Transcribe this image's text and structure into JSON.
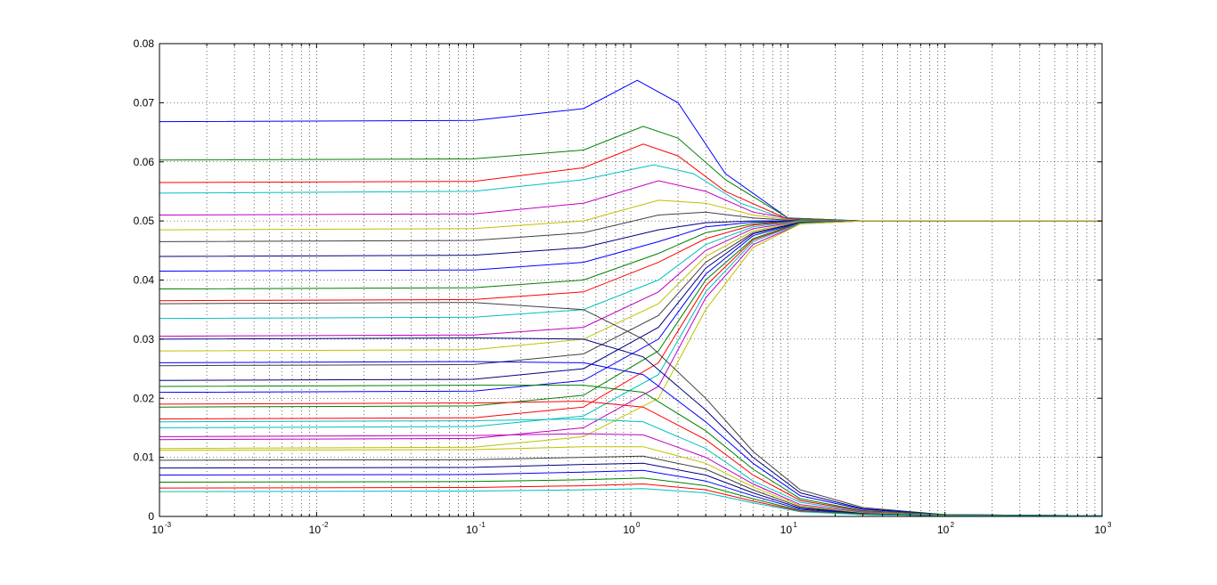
{
  "chart_data": {
    "type": "line",
    "xscale": "log",
    "xlim": [
      0.001,
      1000
    ],
    "ylim": [
      0,
      0.08
    ],
    "grid": true,
    "grid_style": "dotted",
    "title": "",
    "xlabel": "",
    "ylabel": "",
    "x_tick_labels": [
      {
        "value": 0.001,
        "base": "10",
        "exp": "-3"
      },
      {
        "value": 0.01,
        "base": "10",
        "exp": "-2"
      },
      {
        "value": 0.1,
        "base": "10",
        "exp": "-1"
      },
      {
        "value": 1,
        "base": "10",
        "exp": "0"
      },
      {
        "value": 10,
        "base": "10",
        "exp": "1"
      },
      {
        "value": 100,
        "base": "10",
        "exp": "2"
      },
      {
        "value": 1000,
        "base": "10",
        "exp": "3"
      }
    ],
    "y_tick_labels": [
      {
        "value": 0,
        "label": "0"
      },
      {
        "value": 0.01,
        "label": "0.01"
      },
      {
        "value": 0.02,
        "label": "0.02"
      },
      {
        "value": 0.03,
        "label": "0.03"
      },
      {
        "value": 0.04,
        "label": "0.04"
      },
      {
        "value": 0.05,
        "label": "0.05"
      },
      {
        "value": 0.06,
        "label": "0.06"
      },
      {
        "value": 0.07,
        "label": "0.07"
      },
      {
        "value": 0.08,
        "label": "0.08"
      }
    ],
    "series_colors": [
      "#0000ff",
      "#008000",
      "#ff0000",
      "#00bfbf",
      "#bf00bf",
      "#bfbf00",
      "#404040",
      "#000080"
    ],
    "series": [
      {
        "x": [
          0.001,
          0.1,
          0.5,
          1.1,
          2,
          4,
          10,
          30,
          1000
        ],
        "y": [
          0.0668,
          0.067,
          0.069,
          0.0738,
          0.07,
          0.058,
          0.0505,
          0.05,
          0.05
        ]
      },
      {
        "x": [
          0.001,
          0.1,
          0.5,
          1.2,
          2,
          4,
          10,
          30,
          1000
        ],
        "y": [
          0.0603,
          0.0605,
          0.062,
          0.066,
          0.064,
          0.057,
          0.0505,
          0.05,
          0.05
        ]
      },
      {
        "x": [
          0.001,
          0.1,
          0.5,
          1.2,
          2,
          4,
          10,
          30,
          1000
        ],
        "y": [
          0.0565,
          0.0567,
          0.059,
          0.063,
          0.061,
          0.055,
          0.0503,
          0.05,
          0.05
        ]
      },
      {
        "x": [
          0.001,
          0.1,
          0.5,
          1.4,
          2.5,
          5,
          10,
          30,
          1000
        ],
        "y": [
          0.0547,
          0.055,
          0.057,
          0.0595,
          0.058,
          0.053,
          0.0502,
          0.05,
          0.05
        ]
      },
      {
        "x": [
          0.001,
          0.1,
          0.5,
          1.5,
          3,
          6,
          12,
          30,
          1000
        ],
        "y": [
          0.051,
          0.0512,
          0.053,
          0.0568,
          0.055,
          0.0515,
          0.0501,
          0.05,
          0.05
        ]
      },
      {
        "x": [
          0.001,
          0.1,
          0.5,
          1.5,
          3,
          6,
          12,
          30,
          1000
        ],
        "y": [
          0.0485,
          0.0487,
          0.05,
          0.0535,
          0.053,
          0.051,
          0.05,
          0.05,
          0.05
        ]
      },
      {
        "x": [
          0.001,
          0.1,
          0.5,
          1.5,
          3,
          6,
          12,
          30,
          1000
        ],
        "y": [
          0.0465,
          0.0467,
          0.048,
          0.051,
          0.0515,
          0.0505,
          0.05,
          0.05,
          0.05
        ]
      },
      {
        "x": [
          0.001,
          0.1,
          0.5,
          1.5,
          3,
          6,
          12,
          30,
          1000
        ],
        "y": [
          0.044,
          0.0442,
          0.0455,
          0.0485,
          0.0497,
          0.05,
          0.05,
          0.05,
          0.05
        ]
      },
      {
        "x": [
          0.001,
          0.1,
          0.5,
          1.5,
          3,
          6,
          12,
          30,
          1000
        ],
        "y": [
          0.0415,
          0.0417,
          0.043,
          0.0465,
          0.049,
          0.0498,
          0.05,
          0.05,
          0.05
        ]
      },
      {
        "x": [
          0.001,
          0.1,
          0.5,
          1.5,
          3,
          6,
          12,
          30,
          1000
        ],
        "y": [
          0.0385,
          0.0387,
          0.04,
          0.0445,
          0.048,
          0.0495,
          0.05,
          0.05,
          0.05
        ]
      },
      {
        "x": [
          0.001,
          0.1,
          0.5,
          1.5,
          3,
          6,
          12,
          30,
          1000
        ],
        "y": [
          0.0365,
          0.0367,
          0.038,
          0.043,
          0.047,
          0.0493,
          0.05,
          0.05,
          0.05
        ]
      },
      {
        "x": [
          0.001,
          0.1,
          0.5,
          1.5,
          3,
          6,
          12,
          30,
          1000
        ],
        "y": [
          0.0335,
          0.0337,
          0.035,
          0.04,
          0.046,
          0.049,
          0.05,
          0.05,
          0.05
        ]
      },
      {
        "x": [
          0.001,
          0.1,
          0.5,
          1.5,
          3,
          6,
          12,
          30,
          1000
        ],
        "y": [
          0.0305,
          0.0307,
          0.032,
          0.038,
          0.045,
          0.0487,
          0.0499,
          0.05,
          0.05
        ]
      },
      {
        "x": [
          0.001,
          0.1,
          0.5,
          1.5,
          3,
          6,
          12,
          30,
          1000
        ],
        "y": [
          0.028,
          0.0282,
          0.03,
          0.036,
          0.044,
          0.0483,
          0.0499,
          0.05,
          0.05
        ]
      },
      {
        "x": [
          0.001,
          0.1,
          0.5,
          1.5,
          3,
          6,
          12,
          30,
          1000
        ],
        "y": [
          0.0255,
          0.0257,
          0.0275,
          0.034,
          0.043,
          0.048,
          0.0498,
          0.05,
          0.05
        ]
      },
      {
        "x": [
          0.001,
          0.1,
          0.5,
          1.5,
          3,
          6,
          12,
          30,
          1000
        ],
        "y": [
          0.023,
          0.0232,
          0.025,
          0.032,
          0.042,
          0.0478,
          0.0498,
          0.05,
          0.05
        ]
      },
      {
        "x": [
          0.001,
          0.1,
          0.5,
          1.5,
          3,
          6,
          12,
          30,
          1000
        ],
        "y": [
          0.021,
          0.0212,
          0.023,
          0.03,
          0.041,
          0.0475,
          0.0497,
          0.05,
          0.05
        ]
      },
      {
        "x": [
          0.001,
          0.1,
          0.5,
          1.5,
          3,
          6,
          12,
          30,
          1000
        ],
        "y": [
          0.0185,
          0.0187,
          0.0205,
          0.028,
          0.04,
          0.047,
          0.0497,
          0.05,
          0.05
        ]
      },
      {
        "x": [
          0.001,
          0.1,
          0.5,
          1.5,
          3,
          6,
          12,
          30,
          1000
        ],
        "y": [
          0.0165,
          0.0167,
          0.0185,
          0.026,
          0.039,
          0.0468,
          0.0496,
          0.05,
          0.05
        ]
      },
      {
        "x": [
          0.001,
          0.1,
          0.5,
          1.5,
          3,
          6,
          12,
          30,
          1000
        ],
        "y": [
          0.015,
          0.0152,
          0.017,
          0.024,
          0.038,
          0.0465,
          0.0496,
          0.05,
          0.05
        ]
      },
      {
        "x": [
          0.001,
          0.1,
          0.5,
          1.5,
          3,
          6,
          12,
          30,
          1000
        ],
        "y": [
          0.013,
          0.0132,
          0.015,
          0.022,
          0.037,
          0.046,
          0.0495,
          0.05,
          0.05
        ]
      },
      {
        "x": [
          0.001,
          0.1,
          0.5,
          1.5,
          3,
          6,
          12,
          30,
          1000
        ],
        "y": [
          0.0115,
          0.0117,
          0.0135,
          0.02,
          0.035,
          0.0455,
          0.0495,
          0.05,
          0.05
        ]
      },
      {
        "x": [
          0.001,
          0.1,
          0.5,
          1.2,
          3,
          6,
          12,
          30,
          100,
          1000
        ],
        "y": [
          0.036,
          0.0362,
          0.035,
          0.03,
          0.02,
          0.011,
          0.0045,
          0.0015,
          0.0003,
          0.0001
        ]
      },
      {
        "x": [
          0.001,
          0.1,
          0.5,
          1.2,
          3,
          6,
          12,
          30,
          100,
          1000
        ],
        "y": [
          0.03,
          0.0302,
          0.03,
          0.027,
          0.018,
          0.01,
          0.004,
          0.0013,
          0.0003,
          0.0001
        ]
      },
      {
        "x": [
          0.001,
          0.1,
          0.5,
          1.2,
          3,
          6,
          12,
          30,
          100,
          1000
        ],
        "y": [
          0.026,
          0.0262,
          0.026,
          0.024,
          0.016,
          0.009,
          0.0035,
          0.0012,
          0.0003,
          0.0001
        ]
      },
      {
        "x": [
          0.001,
          0.1,
          0.5,
          1.2,
          3,
          6,
          12,
          30,
          100,
          1000
        ],
        "y": [
          0.022,
          0.0222,
          0.0222,
          0.021,
          0.0145,
          0.008,
          0.003,
          0.001,
          0.0003,
          0.0001
        ]
      },
      {
        "x": [
          0.001,
          0.1,
          0.5,
          1.2,
          3,
          6,
          12,
          30,
          100,
          1000
        ],
        "y": [
          0.019,
          0.0192,
          0.0195,
          0.0185,
          0.013,
          0.007,
          0.0027,
          0.0009,
          0.0002,
          0.0001
        ]
      },
      {
        "x": [
          0.001,
          0.1,
          0.5,
          1.2,
          3,
          6,
          12,
          30,
          100,
          1000
        ],
        "y": [
          0.016,
          0.0162,
          0.0165,
          0.016,
          0.0115,
          0.006,
          0.0024,
          0.0008,
          0.0002,
          0.0001
        ]
      },
      {
        "x": [
          0.001,
          0.1,
          0.5,
          1.2,
          3,
          6,
          12,
          30,
          100,
          1000
        ],
        "y": [
          0.0135,
          0.0137,
          0.014,
          0.0138,
          0.01,
          0.0055,
          0.002,
          0.0007,
          0.0002,
          0.0001
        ]
      },
      {
        "x": [
          0.001,
          0.1,
          0.5,
          1.2,
          3,
          6,
          12,
          30,
          100,
          1000
        ],
        "y": [
          0.0112,
          0.0113,
          0.0118,
          0.0118,
          0.009,
          0.005,
          0.0018,
          0.0006,
          0.0002,
          0.0001
        ]
      },
      {
        "x": [
          0.001,
          0.1,
          0.5,
          1.2,
          3,
          6,
          12,
          30,
          100,
          1000
        ],
        "y": [
          0.0095,
          0.0096,
          0.01,
          0.0102,
          0.008,
          0.0045,
          0.0016,
          0.0005,
          0.0001,
          0.0001
        ]
      },
      {
        "x": [
          0.001,
          0.1,
          0.5,
          1.2,
          3,
          6,
          12,
          30,
          100,
          1000
        ],
        "y": [
          0.0082,
          0.0083,
          0.0088,
          0.009,
          0.007,
          0.004,
          0.0014,
          0.0005,
          0.0001,
          0.0001
        ]
      },
      {
        "x": [
          0.001,
          0.1,
          0.5,
          1.2,
          3,
          6,
          12,
          30,
          100,
          1000
        ],
        "y": [
          0.007,
          0.0071,
          0.0075,
          0.0078,
          0.006,
          0.0035,
          0.0012,
          0.0004,
          0.0001,
          0.0001
        ]
      },
      {
        "x": [
          0.001,
          0.1,
          0.5,
          1.2,
          3,
          6,
          12,
          30,
          100,
          1000
        ],
        "y": [
          0.0058,
          0.0059,
          0.0062,
          0.0065,
          0.0052,
          0.003,
          0.001,
          0.0004,
          0.0001,
          0.0001
        ]
      },
      {
        "x": [
          0.001,
          0.1,
          0.5,
          1.2,
          3,
          6,
          12,
          30,
          100,
          1000
        ],
        "y": [
          0.0048,
          0.0049,
          0.0052,
          0.0055,
          0.0045,
          0.0026,
          0.0009,
          0.0003,
          0.0001,
          0.0001
        ]
      },
      {
        "x": [
          0.001,
          0.1,
          0.5,
          1.2,
          3,
          6,
          12,
          30,
          100,
          1000
        ],
        "y": [
          0.0042,
          0.0043,
          0.0045,
          0.0047,
          0.004,
          0.0023,
          0.0008,
          0.0003,
          0.0001,
          0.0001
        ]
      }
    ]
  }
}
